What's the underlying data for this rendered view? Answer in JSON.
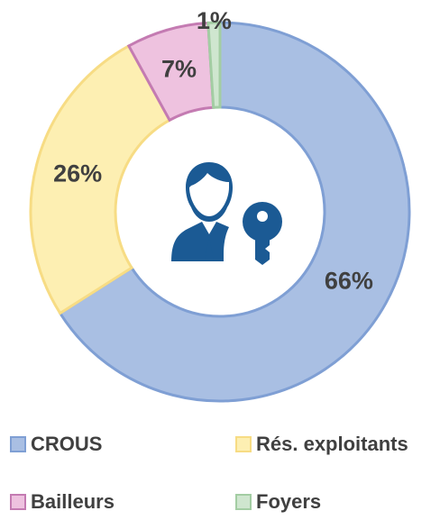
{
  "chart_data": {
    "type": "donut",
    "categories": [
      "CROUS",
      "Rés. exploitants",
      "Bailleurs",
      "Foyers"
    ],
    "values": [
      66,
      26,
      7,
      1
    ],
    "value_labels": [
      "66%",
      "26%",
      "7%",
      "1%"
    ],
    "colors": [
      "#a9bfe3",
      "#fdefb2",
      "#eec2df",
      "#cfe6cf"
    ],
    "edge_colors": [
      "#7f9fd4",
      "#f7dc84",
      "#c47bb2",
      "#a3cda3"
    ],
    "legend": "bottom"
  }
}
